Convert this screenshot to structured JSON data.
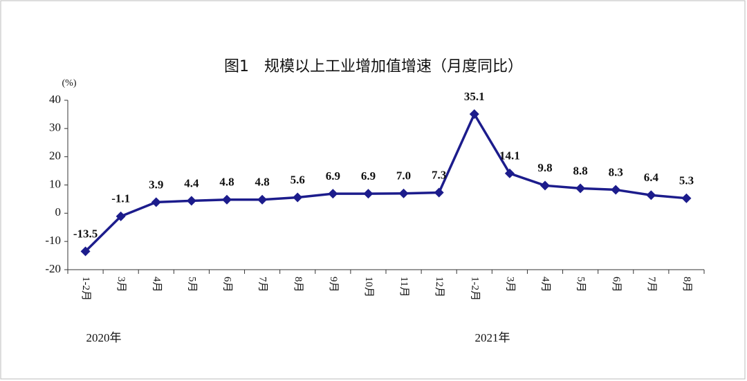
{
  "chart_data": {
    "type": "line",
    "title": "图1　规模以上工业增加值增速（月度同比）",
    "y_unit": "(%)",
    "categories": [
      "1-2月",
      "3月",
      "4月",
      "5月",
      "6月",
      "7月",
      "8月",
      "9月",
      "10月",
      "11月",
      "12月",
      "1-2月",
      "3月",
      "4月",
      "5月",
      "6月",
      "7月",
      "8月"
    ],
    "year_labels": [
      "2020年",
      "2021年"
    ],
    "series": [
      {
        "name": "规模以上工业增加值增速",
        "color": "#1c1c8c",
        "values": [
          -13.5,
          -1.1,
          3.9,
          4.4,
          4.8,
          4.8,
          5.6,
          6.9,
          6.9,
          7.0,
          7.3,
          35.1,
          14.1,
          9.8,
          8.8,
          8.3,
          6.4,
          5.3
        ],
        "value_labels": [
          "-13.5",
          "-1.1",
          "3.9",
          "4.4",
          "4.8",
          "4.8",
          "5.6",
          "6.9",
          "6.9",
          "7.0",
          "7.3",
          "35.1",
          "14.1",
          "9.8",
          "8.8",
          "8.3",
          "6.4",
          "5.3"
        ]
      }
    ],
    "ylim": [
      -20,
      40
    ],
    "yticks": [
      -20,
      -10,
      0,
      10,
      20,
      30,
      40
    ],
    "grid": false
  }
}
